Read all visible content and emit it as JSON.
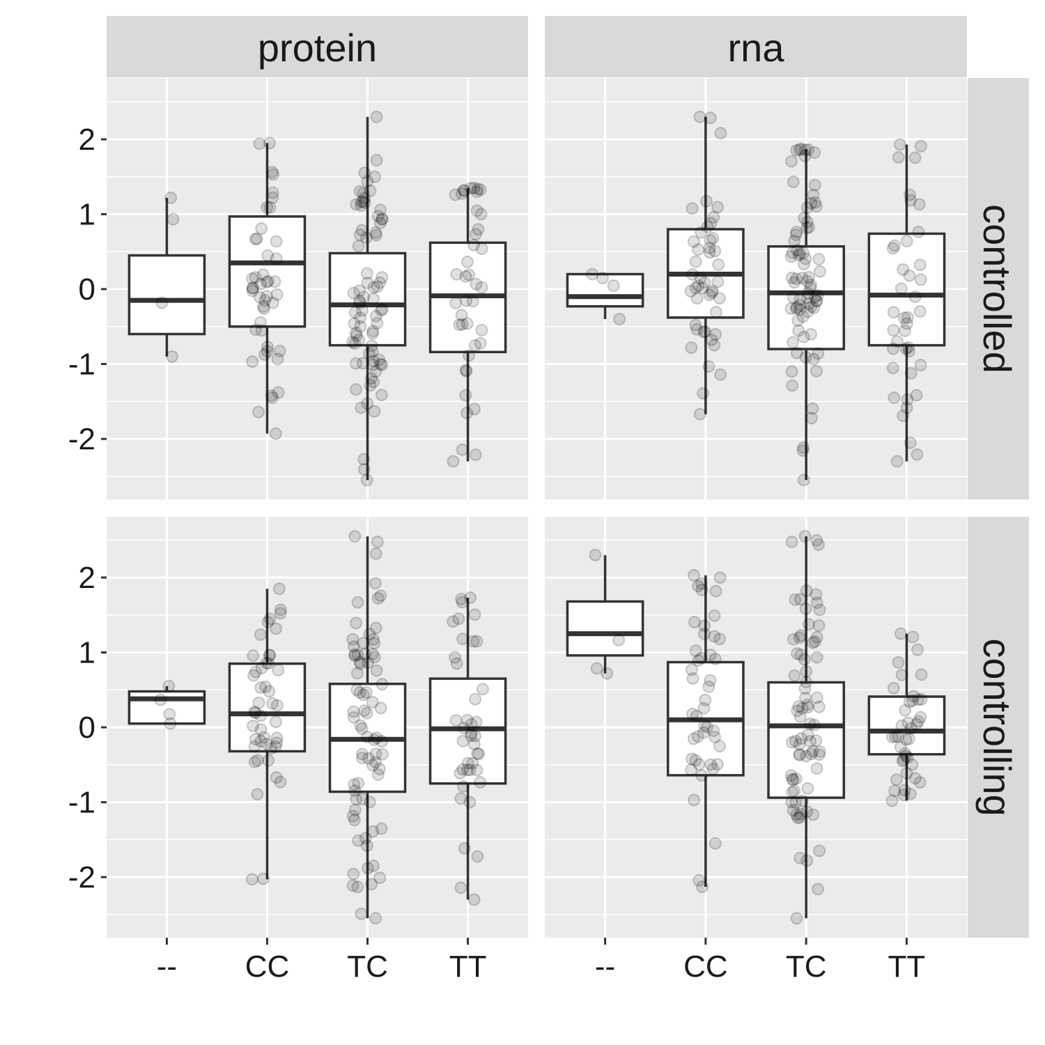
{
  "chart_data": {
    "type": "boxplot",
    "facets": {
      "columns": [
        "protein",
        "rna"
      ],
      "rows": [
        "controlled",
        "controlling"
      ]
    },
    "categories": [
      "--",
      "CC",
      "TC",
      "TT"
    ],
    "y_ticks": [
      -2,
      -1,
      0,
      1,
      2
    ],
    "y_tick_labels": [
      "-2",
      "-1",
      "0",
      "1",
      "2"
    ],
    "ylim": [
      -2.85,
      2.8
    ],
    "grid": true,
    "panels": [
      {
        "column": "protein",
        "row": "controlled",
        "boxes": [
          {
            "category": "--",
            "min": -0.9,
            "q1": -0.6,
            "median": -0.15,
            "q3": 0.45,
            "max": 1.22
          },
          {
            "category": "CC",
            "min": -1.93,
            "q1": -0.5,
            "median": 0.35,
            "q3": 0.97,
            "max": 1.95
          },
          {
            "category": "TC",
            "min": -2.55,
            "q1": -0.75,
            "median": -0.21,
            "q3": 0.48,
            "max": 2.3
          },
          {
            "category": "TT",
            "min": -2.3,
            "q1": -0.84,
            "median": -0.09,
            "q3": 0.62,
            "max": 1.35
          }
        ]
      },
      {
        "column": "rna",
        "row": "controlled",
        "boxes": [
          {
            "category": "--",
            "min": -0.4,
            "q1": -0.23,
            "median": -0.1,
            "q3": 0.2,
            "max": 0.2
          },
          {
            "category": "CC",
            "min": -1.67,
            "q1": -0.38,
            "median": 0.2,
            "q3": 0.8,
            "max": 2.3
          },
          {
            "category": "TC",
            "min": -2.55,
            "q1": -0.8,
            "median": -0.05,
            "q3": 0.57,
            "max": 1.87
          },
          {
            "category": "TT",
            "min": -2.3,
            "q1": -0.75,
            "median": -0.08,
            "q3": 0.74,
            "max": 1.93
          }
        ]
      },
      {
        "column": "protein",
        "row": "controlling",
        "boxes": [
          {
            "category": "--",
            "min": 0.05,
            "q1": 0.05,
            "median": 0.38,
            "q3": 0.48,
            "max": 0.55
          },
          {
            "category": "CC",
            "min": -2.03,
            "q1": -0.32,
            "median": 0.18,
            "q3": 0.85,
            "max": 1.85
          },
          {
            "category": "TC",
            "min": -2.55,
            "q1": -0.86,
            "median": -0.16,
            "q3": 0.58,
            "max": 2.55
          },
          {
            "category": "TT",
            "min": -2.3,
            "q1": -0.75,
            "median": -0.02,
            "q3": 0.65,
            "max": 1.73
          }
        ]
      },
      {
        "column": "rna",
        "row": "controlling",
        "boxes": [
          {
            "category": "--",
            "min": 0.72,
            "q1": 0.96,
            "median": 1.25,
            "q3": 1.68,
            "max": 2.3
          },
          {
            "category": "CC",
            "min": -2.13,
            "q1": -0.64,
            "median": 0.1,
            "q3": 0.87,
            "max": 2.03
          },
          {
            "category": "TC",
            "min": -2.55,
            "q1": -0.94,
            "median": 0.02,
            "q3": 0.6,
            "max": 2.55
          },
          {
            "category": "TT",
            "min": -0.98,
            "q1": -0.36,
            "median": -0.05,
            "q3": 0.41,
            "max": 1.25
          }
        ]
      }
    ]
  },
  "colors": {
    "panel_background": "#ebebeb",
    "grid_major": "#ffffff",
    "strip_background": "#d9d9d9",
    "box_line": "#333333",
    "box_fill": "#ffffff",
    "point": "#000000",
    "text": "#1a1a1a",
    "tick": "#333333"
  }
}
